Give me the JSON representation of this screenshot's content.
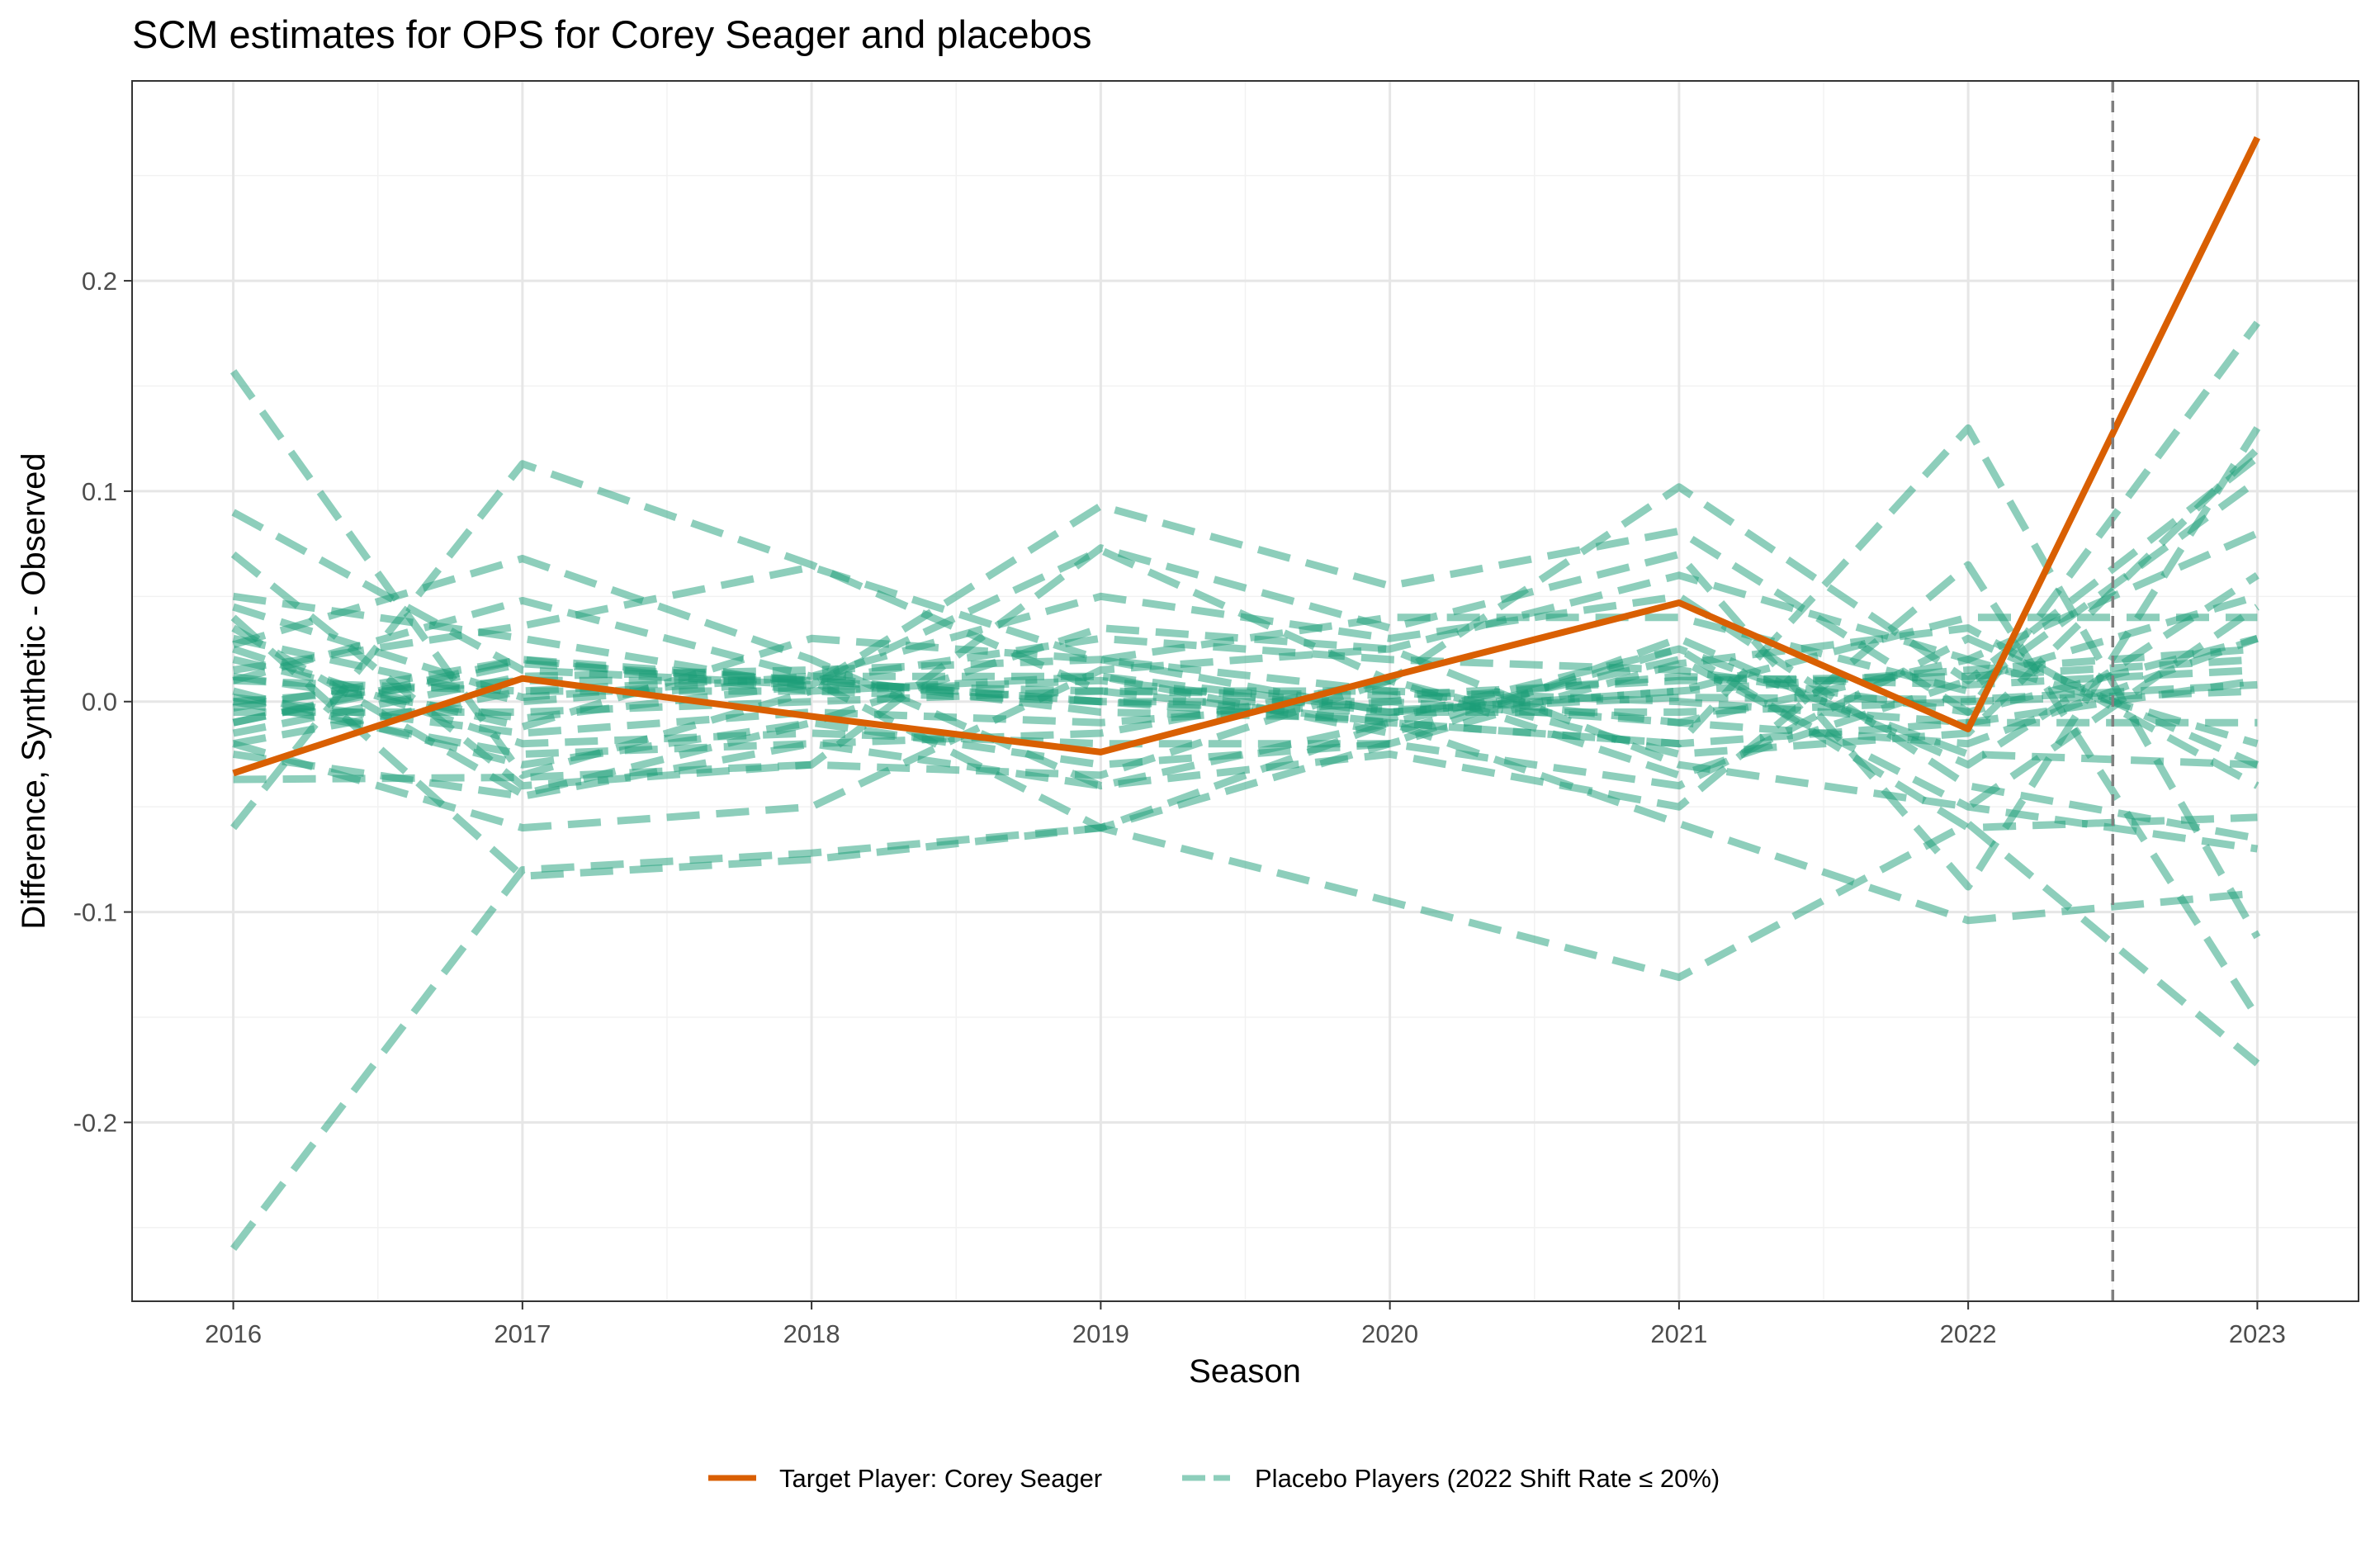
{
  "chart_data": {
    "type": "line",
    "title": "SCM estimates for OPS for Corey Seager and placebos",
    "xlabel": "Season",
    "ylabel": "Difference, Synthetic - Observed",
    "x": [
      2016,
      2017,
      2018,
      2019,
      2020,
      2021,
      2022,
      2023
    ],
    "x_ticks": [
      "2016",
      "2017",
      "2018",
      "2019",
      "2020",
      "2021",
      "2022",
      "2023"
    ],
    "y_ticks": [
      {
        "value": -0.2,
        "label": "-0.2"
      },
      {
        "value": -0.1,
        "label": "-0.1"
      },
      {
        "value": 0.0,
        "label": "0.0"
      },
      {
        "value": 0.1,
        "label": "0.1"
      },
      {
        "value": 0.2,
        "label": "0.2"
      }
    ],
    "xlim": [
      2015.65,
      2023.35
    ],
    "ylim": [
      -0.285,
      0.295
    ],
    "grid": true,
    "legend_position": "bottom",
    "vline": {
      "x": 2022.5,
      "style": "dashed"
    },
    "target": {
      "name": "Target Player: Corey Seager",
      "color": "#D95F02",
      "values": [
        -0.034,
        0.011,
        -0.007,
        -0.024,
        0.012,
        0.047,
        -0.013,
        0.268
      ]
    },
    "placebo_legend": {
      "name": "Placebo Players (2022 Shift Rate ≤ 20%)",
      "color": "#1B9E77"
    },
    "placebos": [
      [
        0.157,
        -0.035,
        0.005,
        0.012,
        -0.004,
        0.002,
        0.001,
        0.008
      ],
      [
        -0.26,
        -0.08,
        -0.072,
        -0.06,
        -0.095,
        -0.131,
        -0.058,
        -0.172
      ],
      [
        0.09,
        0.015,
        0.008,
        0.072,
        0.01,
        0.102,
        0.01,
        0.116
      ],
      [
        -0.06,
        0.113,
        0.065,
        0.005,
        -0.01,
        -0.02,
        0.13,
        -0.112
      ],
      [
        0.05,
        0.03,
        0.007,
        0.093,
        0.055,
        0.081,
        -0.005,
        0.18
      ],
      [
        0.04,
        -0.083,
        -0.075,
        -0.06,
        -0.01,
        -0.058,
        -0.104,
        -0.091
      ],
      [
        0.07,
        -0.04,
        -0.03,
        0.073,
        0.035,
        0.07,
        -0.088,
        0.13
      ],
      [
        0.027,
        0.068,
        0.02,
        -0.04,
        -0.025,
        -0.05,
        0.065,
        -0.15
      ],
      [
        -0.037,
        -0.036,
        -0.03,
        -0.035,
        0.01,
        -0.025,
        -0.015,
        0.12
      ],
      [
        0.01,
        0.048,
        0.012,
        0.05,
        0.03,
        0.05,
        -0.04,
        -0.065
      ],
      [
        0.02,
        -0.012,
        0.03,
        0.02,
        0.04,
        0.04,
        0.005,
        0.105
      ],
      [
        -0.01,
        0.02,
        0.01,
        -0.06,
        -0.02,
        0.018,
        0.035,
        -0.04
      ],
      [
        0.035,
        -0.044,
        -0.01,
        0.035,
        0.025,
        -0.03,
        -0.05,
        0.045
      ],
      [
        0.045,
        0.002,
        0.012,
        0.012,
        -0.015,
        0.025,
        -0.06,
        -0.055
      ],
      [
        -0.02,
        -0.06,
        -0.05,
        0.015,
        0.025,
        0.06,
        0.02,
        0.08
      ],
      [
        0.015,
        0.036,
        0.064,
        0.02,
        -0.005,
        0.005,
        0.04,
        0.04
      ],
      [
        0.005,
        -0.03,
        -0.01,
        -0.03,
        -0.02,
        0.03,
        -0.03,
        0.06
      ],
      [
        0.0,
        0.01,
        0.01,
        0.0,
        0.0,
        -0.01,
        0.02,
        -0.02
      ],
      [
        -0.005,
        -0.005,
        0.0,
        0.005,
        0.005,
        0.0,
        -0.01,
        0.01
      ],
      [
        0.01,
        0.005,
        0.005,
        0.01,
        -0.005,
        0.005,
        0.015,
        0.025
      ],
      [
        -0.01,
        0.018,
        0.01,
        0.0,
        -0.01,
        -0.02,
        -0.01,
        -0.01
      ],
      [
        0.002,
        -0.015,
        -0.005,
        -0.01,
        0.0,
        0.012,
        0.008,
        0.015
      ],
      [
        -0.015,
        0.012,
        0.015,
        0.02,
        0.005,
        -0.01,
        -0.02,
        0.03
      ],
      [
        0.025,
        -0.02,
        -0.015,
        -0.02,
        -0.02,
        -0.04,
        0.03,
        -0.03
      ],
      [
        -0.025,
        -0.045,
        -0.02,
        -0.04,
        -0.01,
        0.02,
        -0.05,
        -0.07
      ],
      [
        0.03,
        0.0,
        0.01,
        0.03,
        0.02,
        0.015,
        -0.005,
        0.03
      ],
      [
        -0.003,
        0.02,
        0.005,
        0.0,
        -0.005,
        -0.005,
        0.0,
        0.005
      ],
      [
        0.012,
        -0.008,
        0.008,
        0.005,
        0.003,
        0.01,
        0.012,
        0.02
      ],
      [
        -0.02,
        0.005,
        0.012,
        -0.005,
        -0.008,
        0.025,
        -0.025,
        -0.03
      ],
      [
        0.0,
        -0.025,
        -0.02,
        -0.015,
        0.01,
        -0.035,
        0.01,
        0.05
      ]
    ]
  }
}
